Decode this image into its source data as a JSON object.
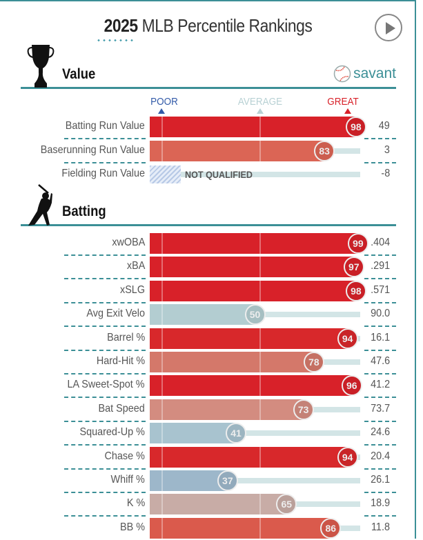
{
  "header": {
    "year": "2025",
    "title": "MLB Percentile Rankings",
    "play_button_icon": "play-icon"
  },
  "brand": {
    "label": "savant",
    "icon": "baseball-icon"
  },
  "legend": {
    "poor": "POOR",
    "average": "AVERAGE",
    "great": "GREAT",
    "colors": {
      "poor": "#325aa8",
      "average": "#b8d1d4",
      "great": "#d82129"
    }
  },
  "chart_data": {
    "type": "bar",
    "title": "2025 MLB Percentile Rankings",
    "xlabel": "Percentile",
    "ylabel": "",
    "xlim": [
      0,
      100
    ],
    "sections": [
      {
        "name": "Value",
        "icon": "trophy-icon",
        "rows": [
          {
            "label": "Batting Run Value",
            "percentile": 98,
            "value": "49",
            "color": "#d82129"
          },
          {
            "label": "Baserunning Run Value",
            "percentile": 83,
            "value": "3",
            "color": "#db6555"
          },
          {
            "label": "Fielding Run Value",
            "percentile": null,
            "value": "-8",
            "status": "NOT QUALIFIED"
          }
        ]
      },
      {
        "name": "Batting",
        "icon": "batter-icon",
        "rows": [
          {
            "label": "xwOBA",
            "percentile": 99,
            "value": ".404",
            "color": "#d82129"
          },
          {
            "label": "xBA",
            "percentile": 97,
            "value": ".291",
            "color": "#d82129"
          },
          {
            "label": "xSLG",
            "percentile": 98,
            "value": ".571",
            "color": "#d82129"
          },
          {
            "label": "Avg Exit Velo",
            "percentile": 50,
            "value": "90.0",
            "color": "#b3cdd1"
          },
          {
            "label": "Barrel %",
            "percentile": 94,
            "value": "16.1",
            "color": "#d8282b"
          },
          {
            "label": "Hard-Hit %",
            "percentile": 78,
            "value": "47.6",
            "color": "#d4786a"
          },
          {
            "label": "LA Sweet-Spot %",
            "percentile": 96,
            "value": "41.2",
            "color": "#d82129"
          },
          {
            "label": "Bat Speed",
            "percentile": 73,
            "value": "73.7",
            "color": "#d38c80"
          },
          {
            "label": "Squared-Up %",
            "percentile": 41,
            "value": "24.6",
            "color": "#a8c3cf"
          },
          {
            "label": "Chase %",
            "percentile": 94,
            "value": "20.4",
            "color": "#d8282b"
          },
          {
            "label": "Whiff %",
            "percentile": 37,
            "value": "26.1",
            "color": "#9db7ca"
          },
          {
            "label": "K %",
            "percentile": 65,
            "value": "18.9",
            "color": "#c8aca6"
          },
          {
            "label": "BB %",
            "percentile": 86,
            "value": "11.8",
            "color": "#da5a4c"
          }
        ]
      }
    ]
  }
}
